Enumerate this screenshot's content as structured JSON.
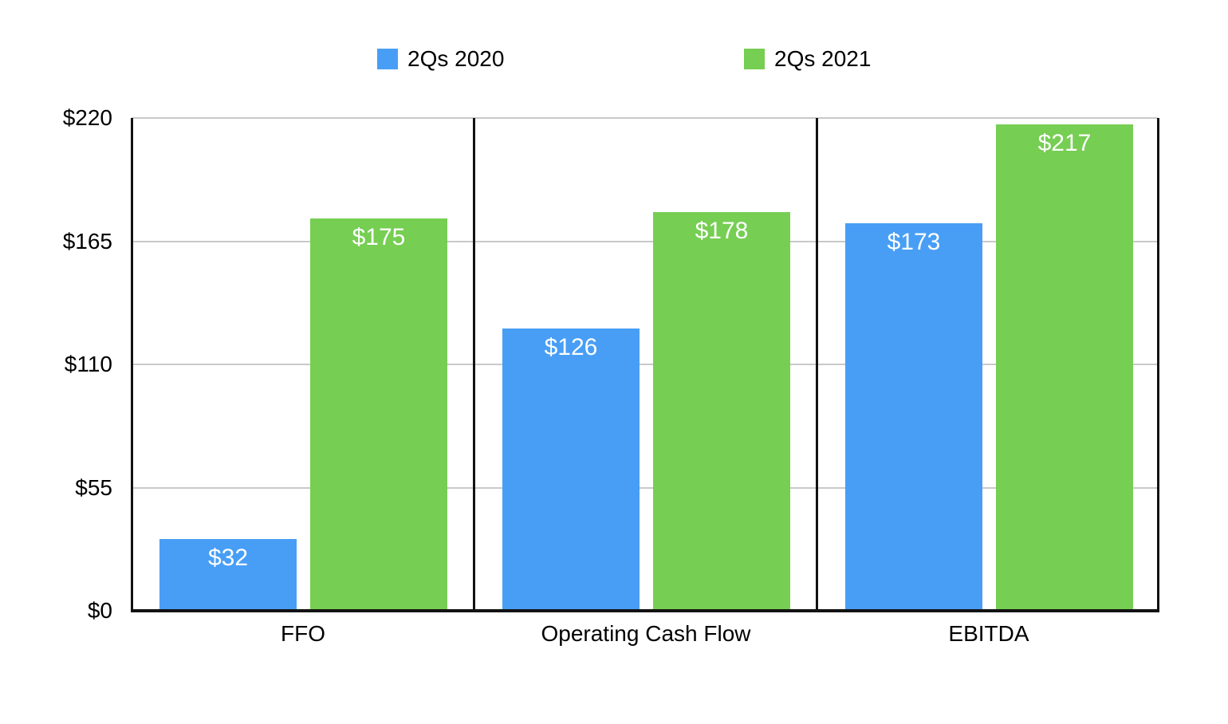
{
  "chart_data": {
    "type": "bar",
    "title": "",
    "categories": [
      "FFO",
      "Operating Cash Flow",
      "EBITDA"
    ],
    "series": [
      {
        "name": "2Qs 2020",
        "color": "#489EF5",
        "values": [
          32,
          126,
          173
        ],
        "labels": [
          "$32",
          "$126",
          "$173"
        ]
      },
      {
        "name": "2Qs 2021",
        "color": "#76CE53",
        "values": [
          175,
          178,
          217
        ],
        "labels": [
          "$175",
          "$178",
          "$217"
        ]
      }
    ],
    "xlabel": "",
    "ylabel": "",
    "ylim": [
      0,
      220
    ],
    "y_ticks": [
      "$0",
      "$55",
      "$110",
      "$165",
      "$220"
    ],
    "y_tick_values": [
      0,
      55,
      110,
      165,
      220
    ],
    "grid": true,
    "legend_position": "top",
    "colors": {
      "bar_value_text": "#ffffff",
      "axis": "#121212",
      "gridline": "#c9c9c9",
      "text": "#000000",
      "background": "#ffffff"
    }
  }
}
